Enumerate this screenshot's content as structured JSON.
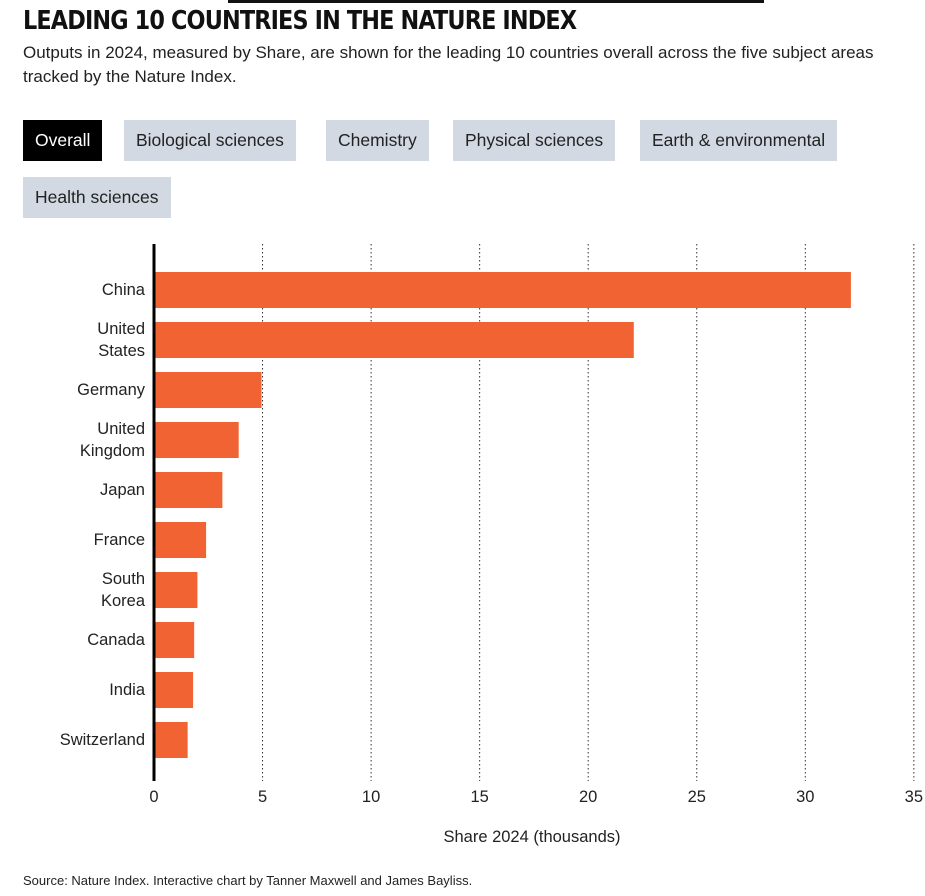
{
  "header": {
    "title": "LEADING 10 COUNTRIES IN THE NATURE INDEX",
    "subtitle": "Outputs in 2024, measured by Share, are shown for the leading 10 countries overall across the five subject areas tracked by the Nature Index."
  },
  "tabs": [
    {
      "label": "Overall",
      "active": true
    },
    {
      "label": "Biological sciences",
      "active": false
    },
    {
      "label": "Chemistry",
      "active": false
    },
    {
      "label": "Physical sciences",
      "active": false
    },
    {
      "label": "Earth & environmental",
      "active": false
    },
    {
      "label": "Health sciences",
      "active": false
    }
  ],
  "chart_data": {
    "type": "bar",
    "orientation": "horizontal",
    "categories": [
      [
        "China"
      ],
      [
        "United",
        "States"
      ],
      [
        "Germany"
      ],
      [
        "United",
        "Kingdom"
      ],
      [
        "Japan"
      ],
      [
        "France"
      ],
      [
        "South",
        "Korea"
      ],
      [
        "Canada"
      ],
      [
        "India"
      ],
      [
        "Switzerland"
      ]
    ],
    "values": [
      32.1,
      22.1,
      4.95,
      3.9,
      3.15,
      2.4,
      2.0,
      1.85,
      1.8,
      1.55
    ],
    "xlabel": "Share 2024 (thousands)",
    "xlim": [
      0,
      35
    ],
    "xticks": [
      0,
      5,
      10,
      15,
      20,
      25,
      30,
      35
    ],
    "grid": "vertical dotted",
    "bar_color": "#f26334"
  },
  "footer": {
    "source": "Source: Nature Index. Interactive chart by Tanner Maxwell and James Bayliss."
  }
}
